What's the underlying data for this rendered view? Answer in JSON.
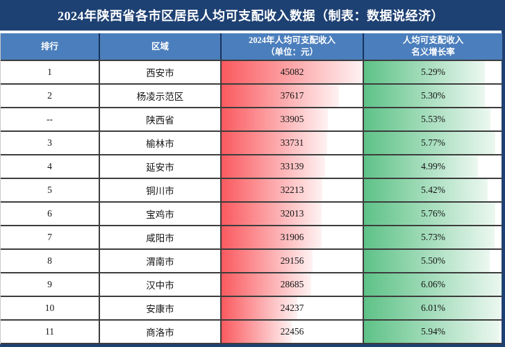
{
  "title_bar": {
    "title": "2024年陕西省各市区居民人均可支配收入数据（制表：数据说经济）"
  },
  "table": {
    "headers": {
      "rank": "排行",
      "region": "区域",
      "income_line1": "2024年人均可支配收入",
      "income_line2": "（单位：元）",
      "growth_line1": "人均可支配收入",
      "growth_line2": "名义增长率"
    },
    "rows": [
      {
        "rank": "1",
        "region": "西安市",
        "income": 45082,
        "income_display": "45082",
        "growth_value": 5.29,
        "growth_display": "5.29%"
      },
      {
        "rank": "2",
        "region": "杨凌示范区",
        "income": 37617,
        "income_display": "37617",
        "growth_value": 5.3,
        "growth_display": "5.30%"
      },
      {
        "rank": "--",
        "region": "陕西省",
        "income": 33905,
        "income_display": "33905",
        "growth_value": 5.53,
        "growth_display": "5.53%"
      },
      {
        "rank": "3",
        "region": "榆林市",
        "income": 33731,
        "income_display": "33731",
        "growth_value": 5.77,
        "growth_display": "5.77%"
      },
      {
        "rank": "4",
        "region": "延安市",
        "income": 33139,
        "income_display": "33139",
        "growth_value": 4.99,
        "growth_display": "4.99%"
      },
      {
        "rank": "5",
        "region": "铜川市",
        "income": 32213,
        "income_display": "32213",
        "growth_value": 5.42,
        "growth_display": "5.42%"
      },
      {
        "rank": "6",
        "region": "宝鸡市",
        "income": 32013,
        "income_display": "32013",
        "growth_value": 5.76,
        "growth_display": "5.76%"
      },
      {
        "rank": "7",
        "region": "咸阳市",
        "income": 31906,
        "income_display": "31906",
        "growth_value": 5.73,
        "growth_display": "5.73%"
      },
      {
        "rank": "8",
        "region": "渭南市",
        "income": 29156,
        "income_display": "29156",
        "growth_value": 5.5,
        "growth_display": "5.50%"
      },
      {
        "rank": "9",
        "region": "汉中市",
        "income": 28685,
        "income_display": "28685",
        "growth_value": 6.06,
        "growth_display": "6.06%"
      },
      {
        "rank": "10",
        "region": "安康市",
        "income": 24237,
        "income_display": "24237",
        "growth_value": 6.01,
        "growth_display": "6.01%"
      },
      {
        "rank": "11",
        "region": "商洛市",
        "income": 22456,
        "income_display": "22456",
        "growth_value": 5.94,
        "growth_display": "5.94%"
      }
    ]
  },
  "colors": {
    "page_navy": "#1e4173",
    "header_blue": "#4b7ebc",
    "income_bar_start": "#fa5a5f",
    "growth_bar_start": "#5ec287",
    "border_dark": "#3c3c3c",
    "text_dark": "#141414",
    "text_white": "#ffffff"
  },
  "chart_data": {
    "type": "table",
    "title": "2024年陕西省各市区居民人均可支配收入数据（制表：数据说经济）",
    "columns": [
      "排行",
      "区域",
      "2024年人均可支配收入（单位：元）",
      "人均可支配收入名义增长率"
    ],
    "rows": [
      [
        "1",
        "西安市",
        45082,
        "5.29%"
      ],
      [
        "2",
        "杨凌示范区",
        37617,
        "5.30%"
      ],
      [
        "--",
        "陕西省",
        33905,
        "5.53%"
      ],
      [
        "3",
        "榆林市",
        33731,
        "5.77%"
      ],
      [
        "4",
        "延安市",
        33139,
        "4.99%"
      ],
      [
        "5",
        "铜川市",
        32213,
        "5.42%"
      ],
      [
        "6",
        "宝鸡市",
        32013,
        "5.76%"
      ],
      [
        "7",
        "咸阳市",
        31906,
        "5.73%"
      ],
      [
        "8",
        "渭南市",
        29156,
        "5.50%"
      ],
      [
        "9",
        "汉中市",
        28685,
        "6.06%"
      ],
      [
        "10",
        "安康市",
        24237,
        "6.01%"
      ],
      [
        "11",
        "商洛市",
        22456,
        "5.94%"
      ]
    ],
    "layout_hints": {
      "income_data_bar": {
        "color": "#fa5a5f",
        "scale_max": 45082,
        "gradient": "fade-to-white-rightward"
      },
      "growth_data_bar": {
        "color": "#5ec287",
        "scale_max": 6.06,
        "gradient": "fade-to-white-rightward"
      }
    }
  }
}
